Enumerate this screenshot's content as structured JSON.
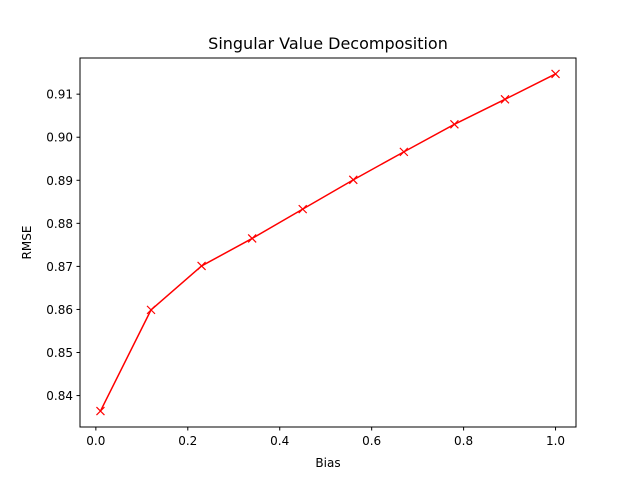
{
  "chart_data": {
    "type": "line",
    "title": "Singular Value Decomposition",
    "xlabel": "Bias",
    "ylabel": "RMSE",
    "xlim": [
      -0.0345,
      1.0445
    ],
    "ylim": [
      0.8327,
      0.9184
    ],
    "xticks": [
      0.0,
      0.2,
      0.4,
      0.6,
      0.8,
      1.0
    ],
    "xtick_labels": [
      "0.0",
      "0.2",
      "0.4",
      "0.6",
      "0.8",
      "1.0"
    ],
    "yticks": [
      0.84,
      0.85,
      0.86,
      0.87,
      0.88,
      0.89,
      0.9,
      0.91
    ],
    "ytick_labels": [
      "0.84",
      "0.85",
      "0.86",
      "0.87",
      "0.88",
      "0.89",
      "0.90",
      "0.91"
    ],
    "grid": false,
    "legend": "none",
    "series": [
      {
        "color": "#ff0000",
        "marker": "x",
        "x": [
          0.01,
          0.12,
          0.23,
          0.34,
          0.45,
          0.56,
          0.67,
          0.78,
          0.89,
          1.0
        ],
        "y": [
          0.8364,
          0.8599,
          0.8701,
          0.8765,
          0.8833,
          0.8901,
          0.8966,
          0.903,
          0.9088,
          0.9147
        ]
      }
    ]
  }
}
